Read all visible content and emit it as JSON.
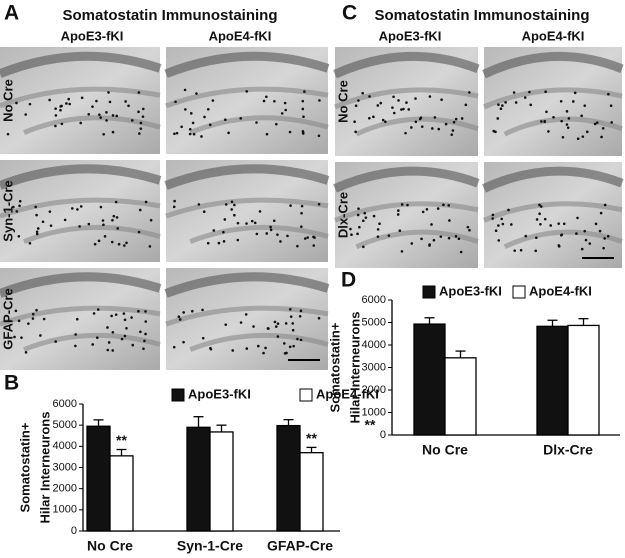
{
  "panels": {
    "A": {
      "label": "A",
      "title": "Somatostatin Immunostaining",
      "columns": [
        "ApoE3-fKI",
        "ApoE4-fKI"
      ],
      "rows": [
        "No Cre",
        "Syn-1-Cre",
        "GFAP-Cre"
      ]
    },
    "C": {
      "label": "C",
      "title": "Somatostatin Immunostaining",
      "columns": [
        "ApoE3-fKI",
        "ApoE4-fKI"
      ],
      "rows": [
        "No Cre",
        "Dlx-Cre"
      ]
    }
  },
  "chart_data": [
    {
      "type": "bar",
      "label": "B",
      "ylabel": [
        "Somatostatin+",
        "Hilar Interneurons"
      ],
      "categories": [
        "No Cre",
        "Syn-1-Cre",
        "GFAP-Cre"
      ],
      "series": [
        {
          "name": "ApoE3-fKI",
          "color": "#111111",
          "values": [
            4950,
            4900,
            4980
          ],
          "errors": [
            300,
            500,
            280
          ]
        },
        {
          "name": "ApoE4-fKI",
          "color": "#ffffff",
          "values": [
            3550,
            4680,
            3700
          ],
          "errors": [
            300,
            320,
            250
          ]
        }
      ],
      "annotations": [
        "**",
        "**"
      ],
      "ylim": [
        0,
        6000
      ],
      "yticks": [
        0,
        1000,
        2000,
        3000,
        4000,
        5000,
        6000
      ]
    },
    {
      "type": "bar",
      "label": "D",
      "ylabel": [
        "Somatostatin+",
        "Hilar Interneurons"
      ],
      "categories": [
        "No Cre",
        "Dlx-Cre"
      ],
      "series": [
        {
          "name": "ApoE3-fKI",
          "color": "#111111",
          "values": [
            4930,
            4830
          ],
          "errors": [
            280,
            270
          ]
        },
        {
          "name": "ApoE4-fKI",
          "color": "#ffffff",
          "values": [
            3430,
            4870
          ],
          "errors": [
            300,
            300
          ]
        }
      ],
      "annotations": [
        "**"
      ],
      "ylim": [
        0,
        6000
      ],
      "yticks": [
        0,
        1000,
        2000,
        3000,
        4000,
        5000,
        6000
      ]
    }
  ]
}
